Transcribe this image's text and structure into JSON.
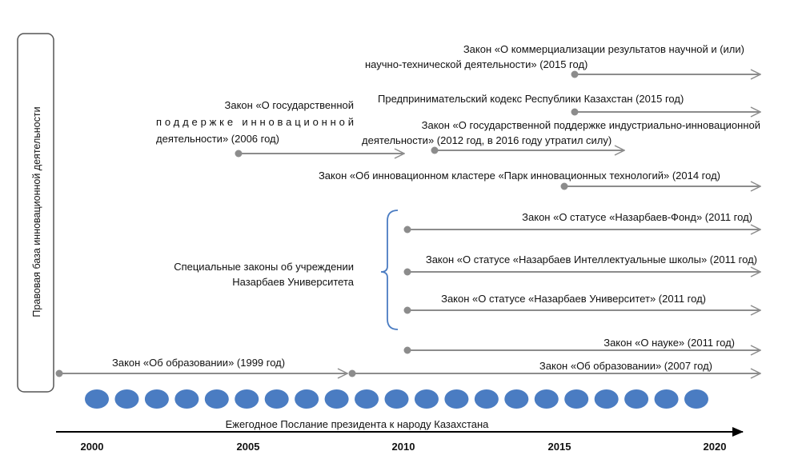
{
  "side_label": "Правовая база инновационной деятельности",
  "laws": {
    "commercialization_l1": "Закон «О коммерциализации результатов научной и (или)",
    "commercialization_l2": "научно-технической деятельности» (2015 год)",
    "entrepreneur_code": "Предпринимательский кодекс Республики Казахстан (2015 год)",
    "state_support_l1": "Закон «О государственной",
    "state_support_l2": "поддержке инновационной",
    "state_support_l3": "деятельности» (2006 год)",
    "industrial_l1": "Закон «О государственной поддержке индустриально-инновационной",
    "industrial_l2": "деятельности» (2012 год, в 2016 году утратил силу)",
    "cluster": "Закон «Об инновационном кластере «Парк инновационных технологий» (2014 год)",
    "fund": "Закон «О статусе «Назарбаев-Фонд» (2011 год)",
    "schools": "Закон «О статусе «Назарбаев Интеллектуальные школы» (2011 год)",
    "university": "Закон «О статусе «Назарбаев Университет» (2011 год)",
    "science": "Закон «О науке» (2011 год)",
    "education_1999": "Закон «Об образовании» (1999 год)",
    "education_2007": "Закон «Об образовании» (2007 год)"
  },
  "special_laws_l1": "Специальные законы об учреждении",
  "special_laws_l2": "Назарбаев Университета",
  "axis_label": "Ежегодное Послание президента к народу Казахстана",
  "years": [
    "2000",
    "2005",
    "2010",
    "2015",
    "2020"
  ],
  "annual_messages_count": 21,
  "colors": {
    "arrow": "#8c8c8c",
    "dot": "#4a7cc2",
    "bracket": "#4a7cc2"
  }
}
